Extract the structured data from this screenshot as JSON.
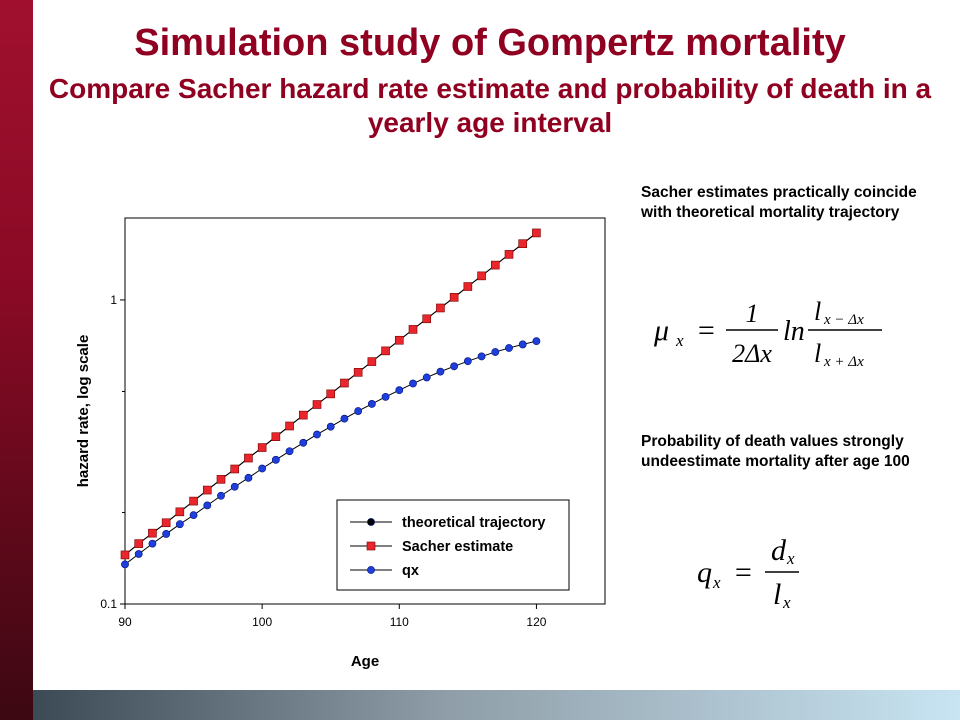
{
  "slide": {
    "title": "Simulation study of Gompertz mortality",
    "subtitle": "Compare Sacher hazard rate estimate and probability of death in a yearly age interval",
    "note_sacher": "Sacher estimates practically coincide with theoretical mortality trajectory",
    "note_prob": "Probability of death values strongly undeestimate mortality after age 100",
    "accent_color": "#900020"
  },
  "formulas": {
    "mu": {
      "lhs": "μ",
      "lhs_sub": "x",
      "eq": "=",
      "frac_num": "1",
      "frac_den": "2Δx",
      "ln": "ln",
      "num_l": "l",
      "num_sub": "x − Δx",
      "den_l": "l",
      "den_sub": "x + Δx"
    },
    "q": {
      "lhs": "q",
      "lhs_sub": "x",
      "eq": "=",
      "num": "d",
      "num_sub": "x",
      "den": "l",
      "den_sub": "x"
    }
  },
  "chart_data": {
    "type": "line",
    "xlabel": "Age",
    "ylabel": "hazard rate, log scale",
    "xlim": [
      90,
      125
    ],
    "xticks": [
      90,
      100,
      110,
      120
    ],
    "ylim": [
      0.1,
      1.86
    ],
    "yscale": "log",
    "yticks": [
      0.1,
      1
    ],
    "ytick_labels": [
      "0.1",
      "1"
    ],
    "grid": false,
    "legend_position": "bottom-right",
    "x": [
      90,
      91,
      92,
      93,
      94,
      95,
      96,
      97,
      98,
      99,
      100,
      101,
      102,
      103,
      104,
      105,
      106,
      107,
      108,
      109,
      110,
      111,
      112,
      113,
      114,
      115,
      116,
      117,
      118,
      119,
      120
    ],
    "series": [
      {
        "name": "theoretical trajectory",
        "marker": "circle",
        "color": "#000000",
        "values": [
          0.145,
          0.158,
          0.171,
          0.185,
          0.201,
          0.218,
          0.237,
          0.257,
          0.278,
          0.302,
          0.327,
          0.355,
          0.385,
          0.418,
          0.453,
          0.491,
          0.533,
          0.578,
          0.627,
          0.68,
          0.737,
          0.8,
          0.867,
          0.941,
          1.02,
          1.107,
          1.2,
          1.302,
          1.412,
          1.531,
          1.661
        ]
      },
      {
        "name": "Sacher estimate",
        "marker": "square",
        "color": "#e8262b",
        "values": [
          0.145,
          0.158,
          0.171,
          0.185,
          0.201,
          0.218,
          0.237,
          0.257,
          0.278,
          0.302,
          0.327,
          0.355,
          0.385,
          0.418,
          0.453,
          0.491,
          0.533,
          0.578,
          0.627,
          0.68,
          0.737,
          0.8,
          0.867,
          0.941,
          1.02,
          1.107,
          1.2,
          1.302,
          1.412,
          1.531,
          1.661
        ]
      },
      {
        "name": "qx",
        "marker": "circle",
        "color": "#1f3fdc",
        "values": [
          0.135,
          0.146,
          0.158,
          0.17,
          0.183,
          0.196,
          0.211,
          0.227,
          0.243,
          0.26,
          0.279,
          0.298,
          0.318,
          0.339,
          0.361,
          0.383,
          0.407,
          0.431,
          0.455,
          0.48,
          0.505,
          0.531,
          0.556,
          0.581,
          0.605,
          0.629,
          0.652,
          0.674,
          0.695,
          0.714,
          0.732
        ]
      }
    ]
  }
}
